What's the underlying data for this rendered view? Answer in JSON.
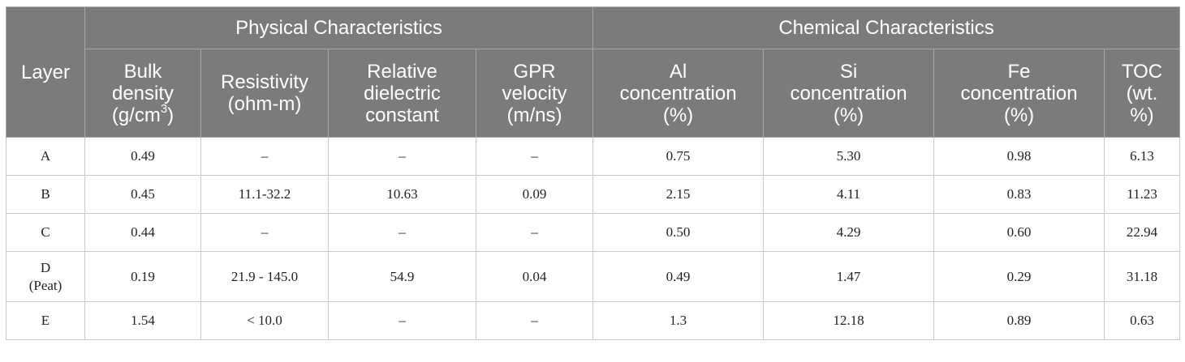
{
  "table": {
    "layer_label": "Layer",
    "group_physical": "Physical Characteristics",
    "group_chemical": "Chemical Characteristics",
    "columns": [
      {
        "l1": "Bulk",
        "l2": "density",
        "l3": "(g/cm",
        "sup": "3",
        "l3b": ")"
      },
      {
        "l1": "Resistivity",
        "l2": "(ohm-m)"
      },
      {
        "l1": "Relative",
        "l2": "dielectric",
        "l3": "constant"
      },
      {
        "l1": "GPR",
        "l2": "velocity",
        "l3": "(m/ns)"
      },
      {
        "l1": "Al",
        "l2": "concentration",
        "l3": "(%)"
      },
      {
        "l1": "Si",
        "l2": "concentration",
        "l3": "(%)"
      },
      {
        "l1": "Fe",
        "l2": "concentration",
        "l3": "(%)"
      },
      {
        "l1": "TOC",
        "l2": "(wt.",
        "l3": "%)"
      }
    ],
    "rows": [
      {
        "layer": "A",
        "sub": "",
        "cells": [
          "0.49",
          "–",
          "–",
          "–",
          "0.75",
          "5.30",
          "0.98",
          "6.13"
        ]
      },
      {
        "layer": "B",
        "sub": "",
        "cells": [
          "0.45",
          "11.1-32.2",
          "10.63",
          "0.09",
          "2.15",
          "4.11",
          "0.83",
          "11.23"
        ]
      },
      {
        "layer": "C",
        "sub": "",
        "cells": [
          "0.44",
          "–",
          "–",
          "–",
          "0.50",
          "4.29",
          "0.60",
          "22.94"
        ]
      },
      {
        "layer": "D",
        "sub": "(Peat)",
        "cells": [
          "0.19",
          "21.9 - 145.0",
          "54.9",
          "0.04",
          "0.49",
          "1.47",
          "0.29",
          "31.18"
        ]
      },
      {
        "layer": "E",
        "sub": "",
        "cells": [
          "1.54",
          "< 10.0",
          "–",
          "–",
          "1.3",
          "12.18",
          "0.89",
          "0.63"
        ]
      }
    ]
  }
}
